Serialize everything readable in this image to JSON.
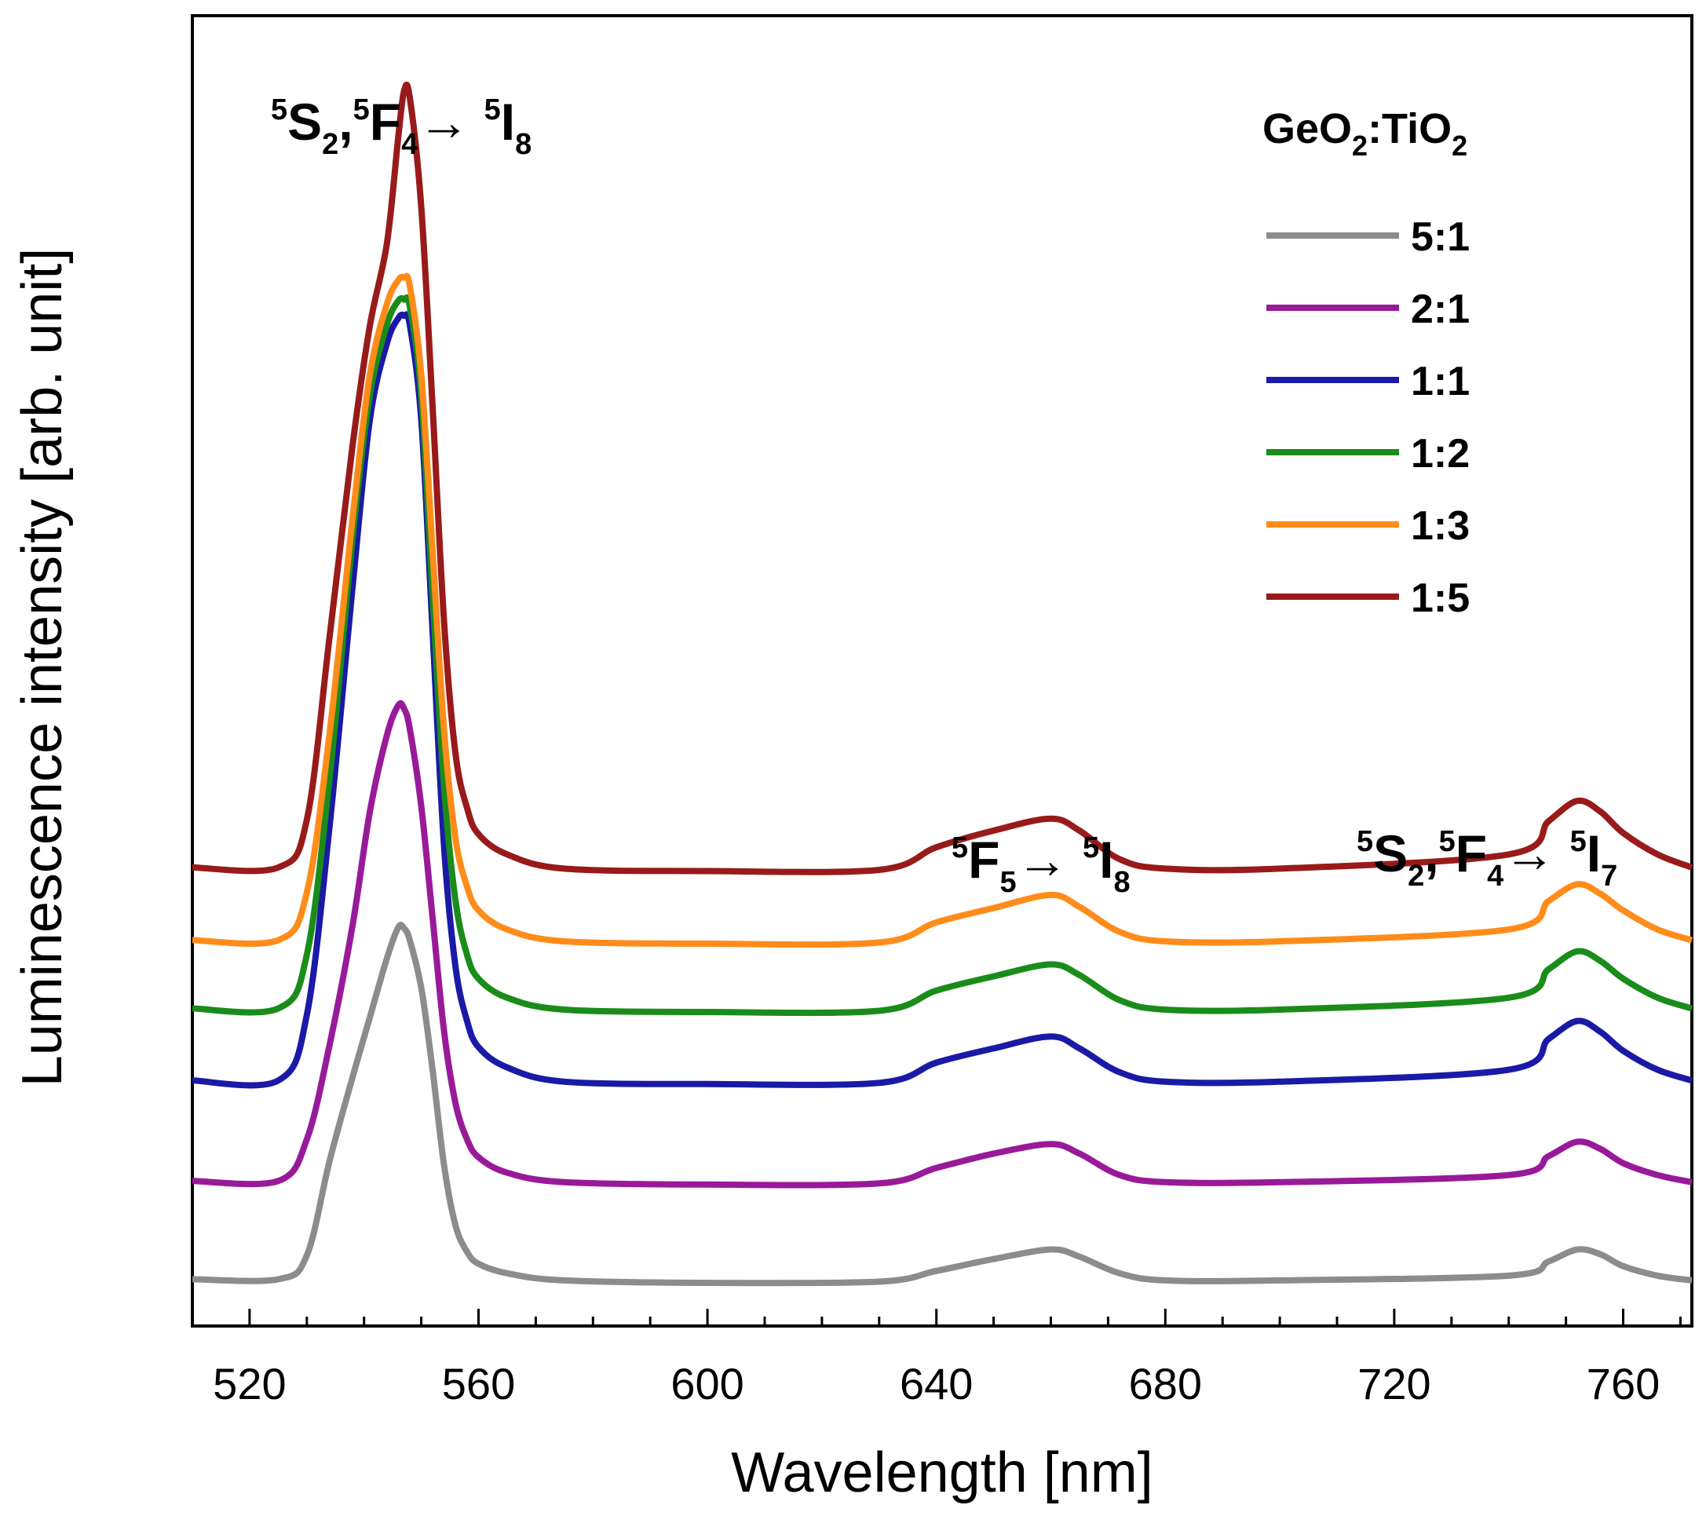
{
  "chart_data": {
    "type": "line",
    "title": "",
    "xlabel": "Wavelength [nm]",
    "ylabel": "Luminescence intensity [arb. unit]",
    "xlim": [
      510,
      772
    ],
    "ylim": [
      0,
      1
    ],
    "x_ticks": [
      520,
      560,
      600,
      640,
      680,
      720,
      760
    ],
    "x_minor_step": 10,
    "y_ticks_shown": false,
    "legend": {
      "title_main": "GeO",
      "title_sub1": "2",
      "title_mid": ":TiO",
      "title_sub2": "2",
      "position": "top-right"
    },
    "annotations": [
      {
        "id": "peak1",
        "parts": [
          {
            "t": "5",
            "k": "sup"
          },
          {
            "t": "S",
            "k": "n"
          },
          {
            "t": "2",
            "k": "sub"
          },
          {
            "t": ",",
            "k": "n"
          },
          {
            "t": "5",
            "k": "sup"
          },
          {
            "t": "F",
            "k": "n"
          },
          {
            "t": "4",
            "k": "sub"
          },
          {
            "t": "→ ",
            "k": "n"
          },
          {
            "t": "5",
            "k": "sup"
          },
          {
            "t": "I",
            "k": "n"
          },
          {
            "t": "8",
            "k": "sub"
          }
        ]
      },
      {
        "id": "peak2",
        "parts": [
          {
            "t": "5",
            "k": "sup"
          },
          {
            "t": "F",
            "k": "n"
          },
          {
            "t": "5",
            "k": "sub"
          },
          {
            "t": "→ ",
            "k": "n"
          },
          {
            "t": "5",
            "k": "sup"
          },
          {
            "t": "I",
            "k": "n"
          },
          {
            "t": "8",
            "k": "sub"
          }
        ]
      },
      {
        "id": "peak3",
        "parts": [
          {
            "t": "5",
            "k": "sup"
          },
          {
            "t": "S",
            "k": "n"
          },
          {
            "t": "2",
            "k": "sub"
          },
          {
            "t": ",",
            "k": "n"
          },
          {
            "t": "5",
            "k": "sup"
          },
          {
            "t": "F",
            "k": "n"
          },
          {
            "t": "4",
            "k": "sub"
          },
          {
            "t": "→ ",
            "k": "n"
          },
          {
            "t": "5",
            "k": "sup"
          },
          {
            "t": "I",
            "k": "n"
          },
          {
            "t": "7",
            "k": "sub"
          }
        ]
      }
    ],
    "series": [
      {
        "name": "5:1",
        "color": "#8c8c8c",
        "x": [
          510,
          525,
          530,
          534,
          538,
          541,
          544,
          546,
          547,
          548,
          550,
          552,
          554,
          556,
          558,
          560,
          565,
          575,
          600,
          630,
          640,
          650,
          660,
          665,
          672,
          680,
          700,
          740,
          747,
          752,
          756,
          760,
          766,
          772
        ],
        "y": [
          0.005,
          0.005,
          0.025,
          0.105,
          0.175,
          0.225,
          0.275,
          0.301,
          0.3,
          0.29,
          0.25,
          0.18,
          0.1,
          0.05,
          0.028,
          0.018,
          0.01,
          0.004,
          0.002,
          0.003,
          0.012,
          0.022,
          0.03,
          0.024,
          0.01,
          0.004,
          0.004,
          0.008,
          0.02,
          0.03,
          0.026,
          0.016,
          0.008,
          0.004
        ]
      },
      {
        "name": "2:1",
        "color": "#991a99",
        "x": [
          510,
          525,
          530,
          534,
          538,
          541,
          544,
          546,
          547,
          548,
          550,
          552,
          554,
          556,
          558,
          560,
          565,
          575,
          600,
          630,
          640,
          650,
          660,
          665,
          672,
          680,
          700,
          740,
          747,
          752,
          756,
          760,
          766,
          772
        ],
        "y": [
          0.005,
          0.005,
          0.04,
          0.12,
          0.22,
          0.315,
          0.38,
          0.405,
          0.402,
          0.385,
          0.32,
          0.225,
          0.13,
          0.07,
          0.04,
          0.025,
          0.012,
          0.004,
          0.002,
          0.003,
          0.016,
          0.028,
          0.036,
          0.028,
          0.01,
          0.004,
          0.004,
          0.01,
          0.026,
          0.038,
          0.032,
          0.02,
          0.01,
          0.004
        ]
      },
      {
        "name": "1:1",
        "color": "#1a1aa6",
        "x": [
          510,
          525,
          530,
          534,
          538,
          541,
          544,
          546,
          547,
          548,
          550,
          552,
          554,
          556,
          558,
          560,
          565,
          575,
          600,
          630,
          640,
          650,
          660,
          665,
          672,
          680,
          700,
          740,
          747,
          752,
          756,
          760,
          766,
          772
        ],
        "y": [
          0.005,
          0.005,
          0.06,
          0.22,
          0.42,
          0.56,
          0.625,
          0.646,
          0.648,
          0.64,
          0.56,
          0.38,
          0.2,
          0.1,
          0.055,
          0.033,
          0.016,
          0.004,
          0.002,
          0.003,
          0.02,
          0.032,
          0.042,
          0.032,
          0.012,
          0.004,
          0.004,
          0.014,
          0.04,
          0.055,
          0.046,
          0.03,
          0.014,
          0.005
        ]
      },
      {
        "name": "1:2",
        "color": "#1a8c1a",
        "x": [
          510,
          525,
          530,
          534,
          538,
          541,
          544,
          546,
          547,
          548,
          550,
          552,
          554,
          556,
          558,
          560,
          565,
          575,
          600,
          630,
          640,
          650,
          660,
          665,
          672,
          680,
          700,
          740,
          747,
          752,
          756,
          760,
          766,
          772
        ],
        "y": [
          0.005,
          0.005,
          0.05,
          0.2,
          0.4,
          0.52,
          0.58,
          0.6,
          0.601,
          0.595,
          0.52,
          0.35,
          0.19,
          0.095,
          0.05,
          0.03,
          0.014,
          0.004,
          0.002,
          0.003,
          0.02,
          0.032,
          0.042,
          0.033,
          0.012,
          0.004,
          0.004,
          0.014,
          0.038,
          0.053,
          0.045,
          0.03,
          0.014,
          0.005
        ]
      },
      {
        "name": "1:3",
        "color": "#ff8c1a",
        "x": [
          510,
          525,
          530,
          534,
          538,
          541,
          544,
          546,
          547,
          548,
          550,
          552,
          554,
          556,
          558,
          560,
          565,
          575,
          600,
          630,
          640,
          650,
          660,
          665,
          672,
          680,
          700,
          740,
          747,
          752,
          756,
          760,
          766,
          772
        ],
        "y": [
          0.005,
          0.005,
          0.045,
          0.18,
          0.36,
          0.48,
          0.54,
          0.56,
          0.562,
          0.555,
          0.48,
          0.33,
          0.18,
          0.09,
          0.05,
          0.03,
          0.014,
          0.004,
          0.002,
          0.003,
          0.02,
          0.032,
          0.043,
          0.033,
          0.012,
          0.004,
          0.004,
          0.014,
          0.038,
          0.052,
          0.044,
          0.03,
          0.014,
          0.005
        ]
      },
      {
        "name": "1:5",
        "color": "#991a1a",
        "x": [
          510,
          525,
          530,
          534,
          538,
          541,
          544,
          546,
          547,
          548,
          550,
          552,
          554,
          556,
          558,
          560,
          565,
          575,
          600,
          630,
          640,
          650,
          660,
          665,
          672,
          680,
          700,
          740,
          747,
          752,
          756,
          760,
          766,
          772
        ],
        "y": [
          0.005,
          0.005,
          0.045,
          0.2,
          0.36,
          0.46,
          0.53,
          0.62,
          0.658,
          0.652,
          0.56,
          0.39,
          0.21,
          0.1,
          0.055,
          0.033,
          0.016,
          0.004,
          0.002,
          0.003,
          0.022,
          0.036,
          0.046,
          0.036,
          0.012,
          0.004,
          0.004,
          0.016,
          0.044,
          0.061,
          0.052,
          0.034,
          0.016,
          0.005
        ]
      }
    ],
    "offsets": [
      0.0,
      0.0826,
      0.1671,
      0.2277,
      0.2851,
      0.3462
    ]
  }
}
